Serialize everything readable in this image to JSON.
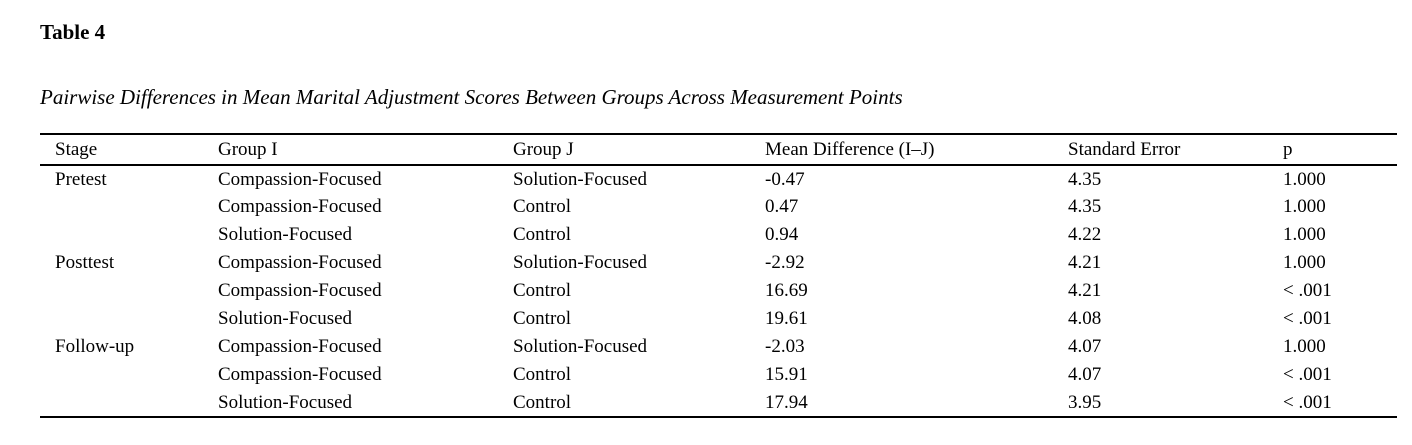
{
  "title": "Table 4",
  "caption": "Pairwise Differences in Mean Marital Adjustment Scores Between Groups Across Measurement Points",
  "colors": {
    "text": "#000000",
    "background": "#ffffff",
    "rule": "#000000"
  },
  "table": {
    "columns": [
      "Stage",
      "Group I",
      "Group J",
      "Mean Difference (I–J)",
      "Standard Error",
      "p"
    ],
    "rows": [
      [
        "Pretest",
        "Compassion-Focused",
        "Solution-Focused",
        "-0.47",
        "4.35",
        "1.000"
      ],
      [
        "",
        "Compassion-Focused",
        "Control",
        "0.47",
        "4.35",
        "1.000"
      ],
      [
        "",
        "Solution-Focused",
        "Control",
        "0.94",
        "4.22",
        "1.000"
      ],
      [
        "Posttest",
        "Compassion-Focused",
        "Solution-Focused",
        "-2.92",
        "4.21",
        "1.000"
      ],
      [
        "",
        "Compassion-Focused",
        "Control",
        "16.69",
        "4.21",
        "< .001"
      ],
      [
        "",
        "Solution-Focused",
        "Control",
        "19.61",
        "4.08",
        "< .001"
      ],
      [
        "Follow-up",
        "Compassion-Focused",
        "Solution-Focused",
        "-2.03",
        "4.07",
        "1.000"
      ],
      [
        "",
        "Compassion-Focused",
        "Control",
        "15.91",
        "4.07",
        "< .001"
      ],
      [
        "",
        "Solution-Focused",
        "Control",
        "17.94",
        "3.95",
        "< .001"
      ]
    ]
  }
}
